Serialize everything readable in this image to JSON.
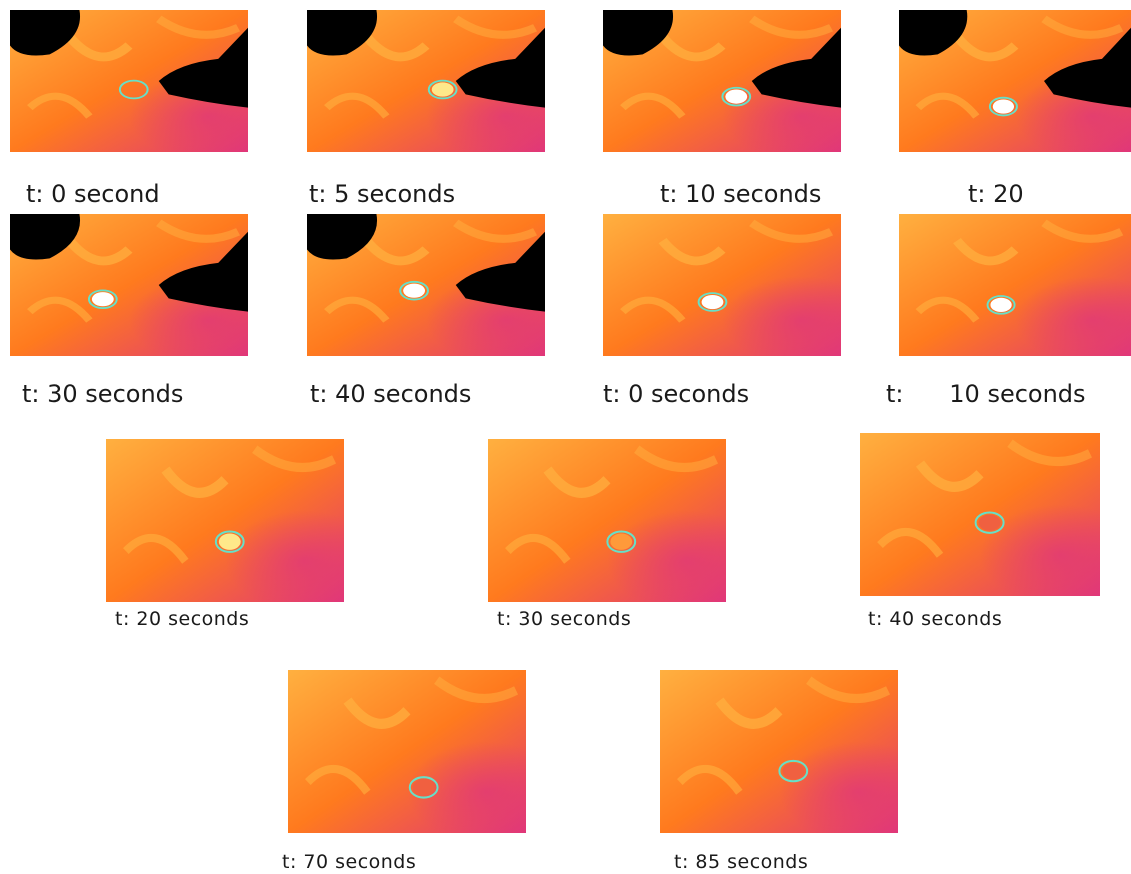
{
  "figure": {
    "panels": [
      {
        "caption": "t: 0 second",
        "tool_visible": true,
        "spot": "cold"
      },
      {
        "caption": "t: 5 seconds",
        "tool_visible": true,
        "spot": "warm"
      },
      {
        "caption": "t: 10 seconds",
        "tool_visible": true,
        "spot": "hot"
      },
      {
        "caption": "t: 20",
        "tool_visible": true,
        "spot": "hot"
      },
      {
        "caption": "t: 30 seconds",
        "tool_visible": true,
        "spot": "hot"
      },
      {
        "caption": "t: 40 seconds",
        "tool_visible": true,
        "spot": "hot"
      },
      {
        "caption": "t: 0 seconds",
        "tool_visible": false,
        "spot": "hot"
      },
      {
        "caption": "t:      10 seconds",
        "tool_visible": false,
        "spot": "hot"
      },
      {
        "caption": "t: 20 seconds",
        "tool_visible": false,
        "spot": "warm"
      },
      {
        "caption": "t: 30 seconds",
        "tool_visible": false,
        "spot": "fading"
      },
      {
        "caption": "t: 40 seconds",
        "tool_visible": false,
        "spot": "faint"
      },
      {
        "caption": "t: 70 seconds",
        "tool_visible": false,
        "spot": "faint"
      },
      {
        "caption": "t: 85 seconds",
        "tool_visible": false,
        "spot": "faint"
      }
    ],
    "colors": {
      "thermal_base": "#ff7a1e",
      "thermal_warm": "#ffb040",
      "thermal_cool": "#e0367a",
      "thermal_cold": "#3a0a6e",
      "marker": "#66e0c8",
      "probe": "#000000"
    }
  }
}
